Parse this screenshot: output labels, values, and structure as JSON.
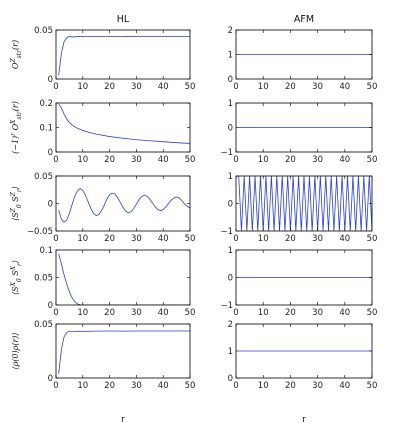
{
  "columns": [
    {
      "title": "HL",
      "xlabel": "r"
    },
    {
      "title": "AFM",
      "xlabel": "r"
    }
  ],
  "line_color": "#2b3fd6",
  "chart_data": [
    {
      "type": "line",
      "row": 0,
      "col": 0,
      "ylabel": "O^Z_{str}(r)",
      "xlim": [
        0,
        50
      ],
      "ylim": [
        0,
        0.05
      ],
      "xticks": [
        0,
        10,
        20,
        30,
        40,
        50
      ],
      "yticks": [
        0,
        0.05
      ],
      "ytick_labels": [
        "0",
        "0.05"
      ],
      "series": [
        {
          "x": [
            1,
            2,
            3,
            4,
            5,
            6,
            8,
            10,
            15,
            20,
            25,
            30,
            35,
            40,
            45,
            50
          ],
          "y": [
            0.004,
            0.026,
            0.038,
            0.042,
            0.0435,
            0.0428,
            0.0433,
            0.0432,
            0.0434,
            0.0435,
            0.0434,
            0.0435,
            0.0435,
            0.0435,
            0.0435,
            0.0435
          ]
        }
      ]
    },
    {
      "type": "line",
      "row": 0,
      "col": 1,
      "ylabel": "",
      "xlim": [
        0,
        50
      ],
      "ylim": [
        0,
        2
      ],
      "xticks": [
        0,
        10,
        20,
        30,
        40,
        50
      ],
      "yticks": [
        0,
        1,
        2
      ],
      "ytick_labels": [
        "0",
        "1",
        "2"
      ],
      "series": [
        {
          "x": [
            1,
            50
          ],
          "y": [
            1,
            1
          ]
        }
      ]
    },
    {
      "type": "line",
      "row": 1,
      "col": 0,
      "ylabel": "(−1)^r O^X_{str}(r)",
      "xlim": [
        0,
        50
      ],
      "ylim": [
        0,
        0.2
      ],
      "xticks": [
        0,
        10,
        20,
        30,
        40,
        50
      ],
      "yticks": [
        0,
        0.1,
        0.2
      ],
      "ytick_labels": [
        "0",
        "0.1",
        "0.2"
      ],
      "series": [
        {
          "x": [
            1,
            2,
            3,
            4,
            5,
            6,
            8,
            10,
            12,
            15,
            20,
            25,
            30,
            35,
            40,
            45,
            50
          ],
          "y": [
            0.195,
            0.18,
            0.155,
            0.135,
            0.12,
            0.11,
            0.097,
            0.088,
            0.081,
            0.073,
            0.063,
            0.056,
            0.05,
            0.046,
            0.042,
            0.038,
            0.035
          ]
        }
      ]
    },
    {
      "type": "line",
      "row": 1,
      "col": 1,
      "ylabel": "",
      "xlim": [
        0,
        50
      ],
      "ylim": [
        -1,
        1
      ],
      "xticks": [
        0,
        10,
        20,
        30,
        40,
        50
      ],
      "yticks": [
        -1,
        0,
        1
      ],
      "ytick_labels": [
        "−1",
        "0",
        "1"
      ],
      "series": [
        {
          "x": [
            1,
            50
          ],
          "y": [
            0,
            0
          ]
        }
      ]
    },
    {
      "type": "line",
      "row": 2,
      "col": 0,
      "ylabel": "⟨S^Z_0 S^Z_r⟩",
      "xlim": [
        0,
        50
      ],
      "ylim": [
        -0.05,
        0.05
      ],
      "xticks": [
        0,
        10,
        20,
        30,
        40,
        50
      ],
      "yticks": [
        -0.05,
        0,
        0.05
      ],
      "ytick_labels": [
        "−0.05",
        "0",
        "0.05"
      ],
      "series": [
        {
          "x": [
            1,
            2,
            3,
            4,
            5,
            6,
            7,
            8,
            9,
            10,
            11,
            12,
            13,
            14,
            15,
            16,
            17,
            18,
            19,
            20,
            21,
            22,
            23,
            24,
            25,
            26,
            27,
            28,
            29,
            30,
            31,
            32,
            33,
            34,
            35,
            36,
            37,
            38,
            39,
            40,
            41,
            42,
            43,
            44,
            45,
            46,
            47,
            48,
            49,
            50
          ],
          "y": [
            -0.012,
            -0.028,
            -0.034,
            -0.03,
            -0.018,
            -0.002,
            0.013,
            0.023,
            0.027,
            0.024,
            0.015,
            0.003,
            -0.009,
            -0.018,
            -0.022,
            -0.02,
            -0.013,
            -0.003,
            0.008,
            0.016,
            0.019,
            0.017,
            0.011,
            0.002,
            -0.007,
            -0.014,
            -0.017,
            -0.015,
            -0.009,
            -0.001,
            0.007,
            0.013,
            0.015,
            0.013,
            0.008,
            0.001,
            -0.006,
            -0.011,
            -0.013,
            -0.011,
            -0.006,
            0.0,
            0.006,
            0.01,
            0.012,
            0.01,
            0.005,
            -0.001,
            -0.005,
            -0.008
          ]
        }
      ]
    },
    {
      "type": "line",
      "row": 2,
      "col": 1,
      "ylabel": "",
      "xlim": [
        0,
        50
      ],
      "ylim": [
        -1,
        1
      ],
      "xticks": [
        0,
        10,
        20,
        30,
        40,
        50
      ],
      "yticks": [
        -1,
        0,
        1
      ],
      "ytick_labels": [
        "−1",
        "0",
        "1"
      ],
      "series": [
        {
          "alternating": true,
          "start": 1,
          "end": 50,
          "values": [
            1,
            -1
          ]
        }
      ]
    },
    {
      "type": "line",
      "row": 3,
      "col": 0,
      "ylabel": "⟨S^X_0 S^X_r⟩",
      "xlim": [
        0,
        50
      ],
      "ylim": [
        0,
        0.1
      ],
      "xticks": [
        0,
        10,
        20,
        30,
        40,
        50
      ],
      "yticks": [
        0,
        0.05,
        0.1
      ],
      "ytick_labels": [
        "0",
        "0.05",
        "0.1"
      ],
      "series": [
        {
          "x": [
            1,
            2,
            3,
            4,
            5,
            6,
            7,
            8,
            9,
            10,
            15,
            20,
            30,
            40,
            50
          ],
          "y": [
            0.093,
            0.075,
            0.055,
            0.038,
            0.024,
            0.013,
            0.006,
            0.002,
            0.0005,
            0.0,
            0.0,
            0.0,
            0.0,
            0.0,
            0.0
          ]
        }
      ]
    },
    {
      "type": "line",
      "row": 3,
      "col": 1,
      "ylabel": "",
      "xlim": [
        0,
        50
      ],
      "ylim": [
        -1,
        1
      ],
      "xticks": [
        0,
        10,
        20,
        30,
        40,
        50
      ],
      "yticks": [
        -1,
        0,
        1
      ],
      "ytick_labels": [
        "−1",
        "0",
        "1"
      ],
      "series": [
        {
          "x": [
            1,
            50
          ],
          "y": [
            0,
            0
          ]
        }
      ]
    },
    {
      "type": "line",
      "row": 4,
      "col": 0,
      "ylabel": "⟨ρ(0)ρ(r)⟩",
      "xlim": [
        0,
        50
      ],
      "ylim": [
        0,
        0.05
      ],
      "xticks": [
        0,
        10,
        20,
        30,
        40,
        50
      ],
      "yticks": [
        0,
        0.05
      ],
      "ytick_labels": [
        "0",
        "0.05"
      ],
      "series": [
        {
          "x": [
            1,
            2,
            3,
            4,
            5,
            6,
            8,
            10,
            15,
            20,
            25,
            30,
            35,
            40,
            45,
            50
          ],
          "y": [
            0.004,
            0.026,
            0.038,
            0.042,
            0.0435,
            0.0428,
            0.0433,
            0.0432,
            0.0434,
            0.0435,
            0.0434,
            0.0435,
            0.0435,
            0.0435,
            0.0435,
            0.0435
          ]
        }
      ]
    },
    {
      "type": "line",
      "row": 4,
      "col": 1,
      "ylabel": "",
      "xlim": [
        0,
        50
      ],
      "ylim": [
        0,
        2
      ],
      "xticks": [
        0,
        10,
        20,
        30,
        40,
        50
      ],
      "yticks": [
        0,
        1,
        2
      ],
      "ytick_labels": [
        "0",
        "1",
        "2"
      ],
      "series": [
        {
          "x": [
            1,
            50
          ],
          "y": [
            1,
            1
          ]
        }
      ]
    }
  ]
}
